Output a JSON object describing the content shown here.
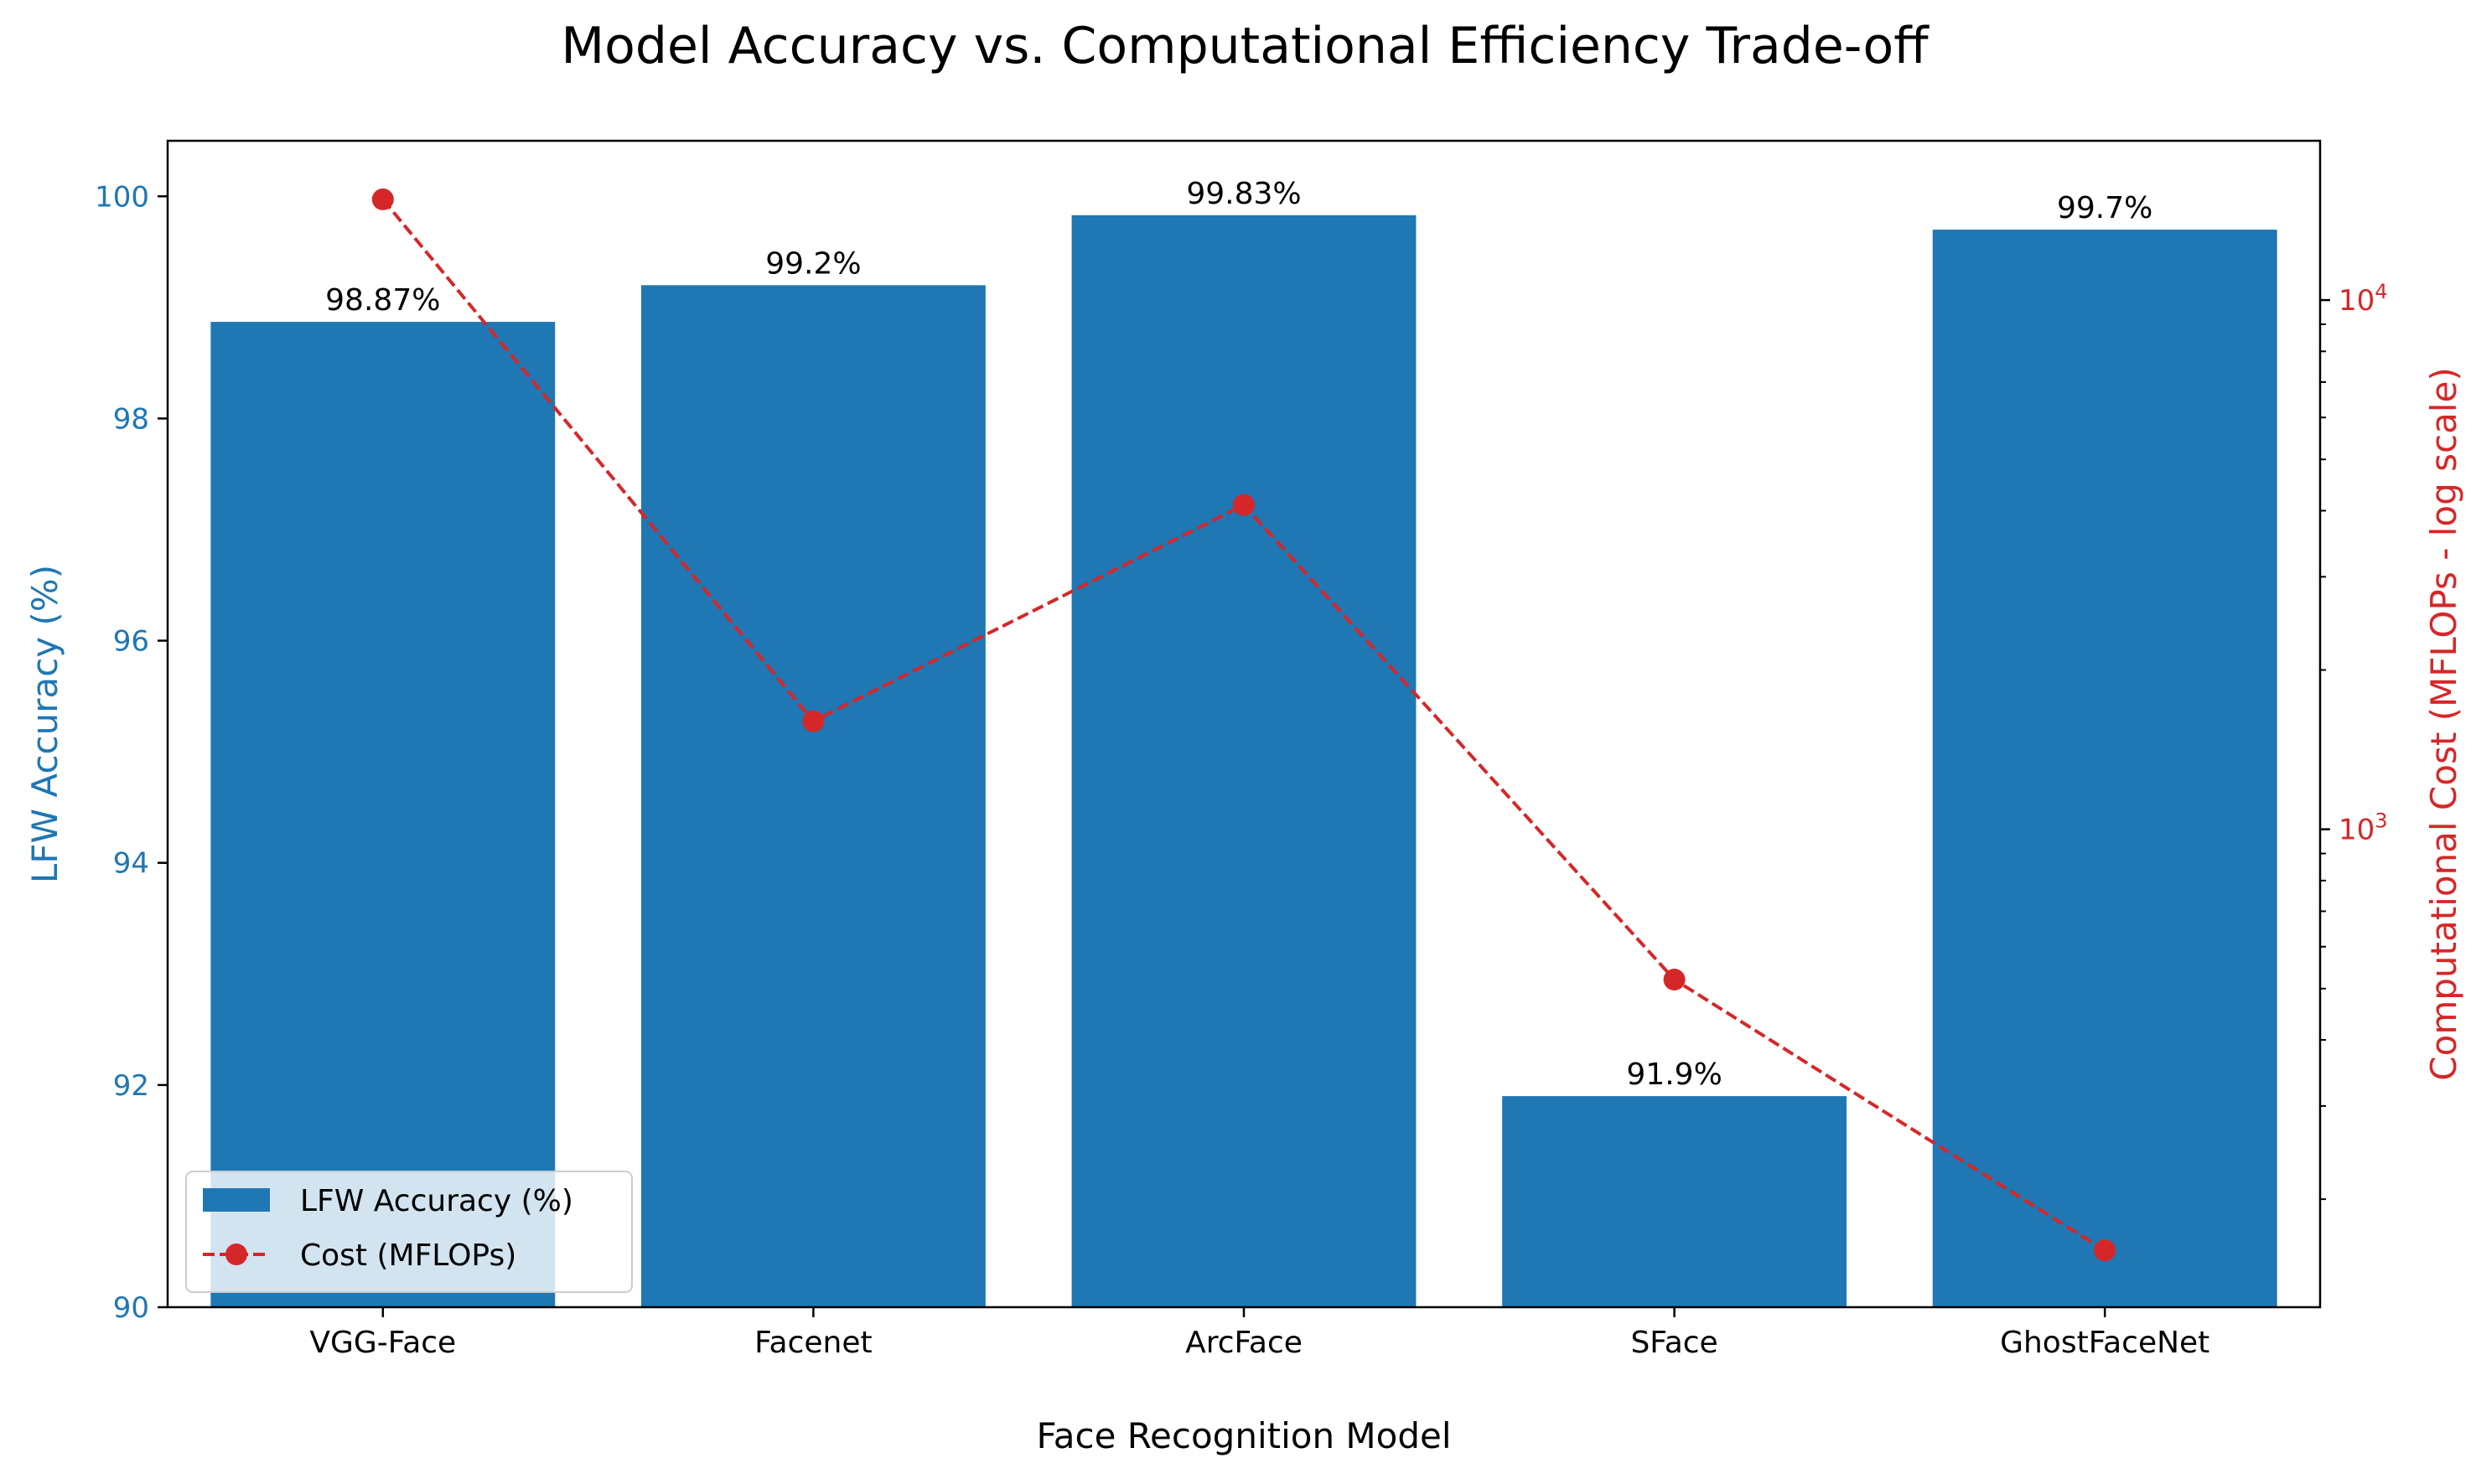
{
  "chart_data": {
    "type": "bar",
    "title": "Model Accuracy vs. Computational Efficiency Trade-off",
    "xlabel": "Face Recognition Model",
    "ylabel": "LFW Accuracy (%)",
    "ylabel_right": "Computational Cost (MFLOPs - log scale)",
    "categories": [
      "VGG-Face",
      "Facenet",
      "ArcFace",
      "SFace",
      "GhostFaceNet"
    ],
    "series": [
      {
        "name": "LFW Accuracy (%)",
        "type": "bar",
        "axis": "left",
        "values": [
          98.87,
          99.2,
          99.83,
          91.9,
          99.7
        ],
        "data_labels": [
          "98.87%",
          "99.2%",
          "99.83%",
          "91.9%",
          "99.7%"
        ],
        "color": "#1f77b4"
      },
      {
        "name": "Cost (MFLOPs)",
        "type": "line",
        "axis": "right",
        "line_style": "dashed",
        "marker": "circle",
        "values": [
          15500,
          1600,
          4100,
          520,
          160
        ],
        "color": "#d62728"
      }
    ],
    "ylim": [
      90,
      100.5
    ],
    "yticks": [
      90,
      92,
      94,
      96,
      98,
      100
    ],
    "y2_scale": "log",
    "y2lim": [
      125,
      20000
    ],
    "y2ticks": [
      {
        "value": 1000,
        "base": "10",
        "exp": "3"
      },
      {
        "value": 10000,
        "base": "10",
        "exp": "4"
      }
    ],
    "y2_minor_ticks": [
      200,
      300,
      400,
      500,
      600,
      700,
      800,
      900,
      2000,
      3000,
      4000,
      5000,
      6000,
      7000,
      8000,
      9000
    ],
    "legend_position": "lower-left",
    "left_axis_color": "#1f77b4",
    "right_axis_color": "#d62728",
    "grid": false
  }
}
